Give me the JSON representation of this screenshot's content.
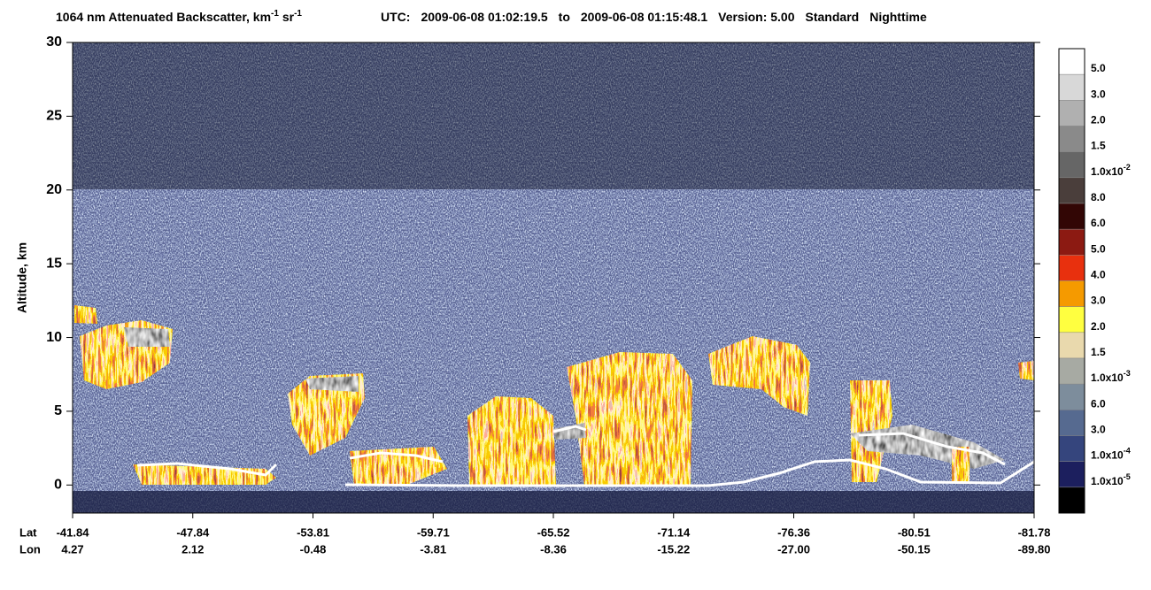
{
  "chart_data": {
    "type": "heatmap",
    "title": [
      {
        "text": "1064 nm Attenuated Backscatter, km"
      },
      {
        "sup": "-1"
      },
      {
        "text": " sr"
      },
      {
        "sup": "-1"
      }
    ],
    "subtitle": [
      "UTC:",
      "2009-06-08 01:02:19.5",
      "to",
      "2009-06-08 01:15:48.1",
      "Version: 5.00",
      "Standard",
      "Nighttime"
    ],
    "ylabel": "Altitude, km",
    "ylim": [
      -1.9,
      30
    ],
    "yticks": [
      0,
      5,
      10,
      15,
      20,
      25,
      30
    ],
    "x_rows": [
      {
        "label": "Lat",
        "ticks": [
          "-41.84",
          "-47.84",
          "-53.81",
          "-59.71",
          "-65.52",
          "-71.14",
          "-76.36",
          "-80.51",
          "-81.78"
        ]
      },
      {
        "label": "Lon",
        "ticks": [
          "4.27",
          "2.12",
          "-0.48",
          "-3.81",
          "-8.36",
          "-15.22",
          "-27.00",
          "-50.15",
          "-89.80"
        ]
      }
    ],
    "colorbar": {
      "colors": [
        "#ffffff",
        "#d8d8d8",
        "#b0b0b0",
        "#8a8a8a",
        "#666666",
        "#4a3e3b",
        "#320605",
        "#8c1a12",
        "#e8300e",
        "#f59a00",
        "#ffff40",
        "#e9d9ad",
        "#a7aaa3",
        "#7d8d9c",
        "#566a90",
        "#35457d",
        "#1c1f5e",
        "#000000"
      ],
      "labels": [
        {
          "text": "5.0"
        },
        {
          "text": "3.0"
        },
        {
          "text": "2.0"
        },
        {
          "text": "1.5"
        },
        {
          "text": "1.0x10",
          "sup": "-2"
        },
        {
          "text": "8.0"
        },
        {
          "text": "6.0"
        },
        {
          "text": "5.0"
        },
        {
          "text": "4.0"
        },
        {
          "text": "3.0"
        },
        {
          "text": "2.0"
        },
        {
          "text": "1.5"
        },
        {
          "text": "1.0x10",
          "sup": "-3"
        },
        {
          "text": "6.0"
        },
        {
          "text": "3.0"
        },
        {
          "text": "1.0x10",
          "sup": "-4"
        },
        {
          "text": "1.0x10",
          "sup": "-5"
        }
      ]
    }
  }
}
